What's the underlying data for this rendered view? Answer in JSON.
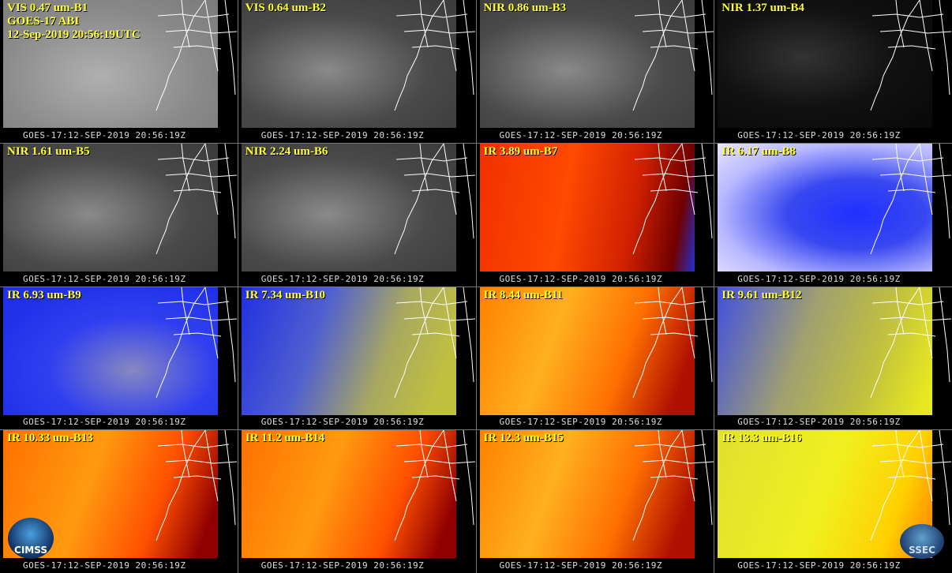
{
  "header": {
    "satellite": "GOES-17 ABI",
    "timestamp": "12-Sep-2019 20:56:19UTC"
  },
  "panels": [
    {
      "label": "VIS 0.47 um-B1",
      "footer": "GOES-17:12-SEP-2019 20:56:19Z"
    },
    {
      "label": "VIS 0.64 um-B2",
      "footer": "GOES-17:12-SEP-2019 20:56:19Z"
    },
    {
      "label": "NIR 0.86 um-B3",
      "footer": "GOES-17:12-SEP-2019 20:56:19Z"
    },
    {
      "label": "NIR 1.37 um-B4",
      "footer": "GOES-17:12-SEP-2019 20:56:19Z"
    },
    {
      "label": "NIR 1.61 um-B5",
      "footer": "GOES-17:12-SEP-2019 20:56:19Z"
    },
    {
      "label": "NIR 2.24 um-B6",
      "footer": "GOES-17:12-SEP-2019 20:56:19Z"
    },
    {
      "label": "IR 3.89 um-B7",
      "footer": "GOES-17:12-SEP-2019 20:56:19Z"
    },
    {
      "label": "IR 6.17 um-B8",
      "footer": "GOES-17:12-SEP-2019 20:56:19Z"
    },
    {
      "label": "IR 6.93 um-B9",
      "footer": "GOES-17:12-SEP-2019 20:56:19Z"
    },
    {
      "label": "IR 7.34 um-B10",
      "footer": "GOES-17:12-SEP-2019 20:56:19Z"
    },
    {
      "label": "IR 8.44 um-B11",
      "footer": "GOES-17:12-SEP-2019 20:56:19Z"
    },
    {
      "label": "IR 9.61 um-B12",
      "footer": "GOES-17:12-SEP-2019 20:56:19Z"
    },
    {
      "label": "IR 10.33 um-B13",
      "footer": "GOES-17:12-SEP-2019 20:56:19Z"
    },
    {
      "label": "IR 11.2 um-B14",
      "footer": "GOES-17:12-SEP-2019 20:56:19Z"
    },
    {
      "label": "IR 12.3 um-B15",
      "footer": "GOES-17:12-SEP-2019 20:56:19Z"
    },
    {
      "label": "IR 13.3 um-B16",
      "footer": "GOES-17:12-SEP-2019 20:56:19Z"
    }
  ],
  "logos": {
    "left": "CIMSS",
    "right": "SSEC"
  }
}
